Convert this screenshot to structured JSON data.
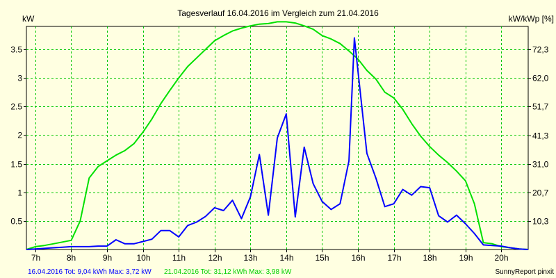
{
  "chart_data": {
    "type": "line",
    "title": "Tagesverlauf 16.04.2016 im Vergleich zum 21.04.2016",
    "ylabel_left": "kW",
    "ylabel_right": "kW/kWp [%]",
    "xlim": [
      6.75,
      20.75
    ],
    "ylim_left": [
      0,
      3.9
    ],
    "ylim_right": [
      0,
      80.6
    ],
    "x_ticks": [
      {
        "x": 7,
        "label": "7h"
      },
      {
        "x": 8,
        "label": "8h"
      },
      {
        "x": 9,
        "label": "9h"
      },
      {
        "x": 10,
        "label": "10h"
      },
      {
        "x": 11,
        "label": "11h"
      },
      {
        "x": 12,
        "label": "12h"
      },
      {
        "x": 13,
        "label": "13h"
      },
      {
        "x": 14,
        "label": "14h"
      },
      {
        "x": 15,
        "label": "15h"
      },
      {
        "x": 16,
        "label": "16h"
      },
      {
        "x": 17,
        "label": "17h"
      },
      {
        "x": 18,
        "label": "18h"
      },
      {
        "x": 19,
        "label": "19h"
      },
      {
        "x": 20,
        "label": "20h"
      }
    ],
    "y_ticks_left": [
      {
        "y": 0.5,
        "label": "0.5"
      },
      {
        "y": 1,
        "label": "1"
      },
      {
        "y": 1.5,
        "label": "1.5"
      },
      {
        "y": 2,
        "label": "2"
      },
      {
        "y": 2.5,
        "label": "2.5"
      },
      {
        "y": 3,
        "label": "3"
      },
      {
        "y": 3.5,
        "label": "3.5"
      }
    ],
    "y_ticks_right": [
      {
        "y": 10.3,
        "label": "10,3"
      },
      {
        "y": 20.7,
        "label": "20,7"
      },
      {
        "y": 31.0,
        "label": "31,0"
      },
      {
        "y": 41.3,
        "label": "41,3"
      },
      {
        "y": 51.7,
        "label": "51,7"
      },
      {
        "y": 62.0,
        "label": "62,0"
      },
      {
        "y": 72.3,
        "label": "72,3"
      }
    ],
    "grid": true,
    "series": [
      {
        "name": "16.04.2016",
        "color": "#0000ff",
        "points": [
          [
            6.75,
            0.0
          ],
          [
            7.0,
            0.01
          ],
          [
            7.25,
            0.02
          ],
          [
            7.5,
            0.03
          ],
          [
            7.75,
            0.04
          ],
          [
            8.0,
            0.05
          ],
          [
            8.25,
            0.05
          ],
          [
            8.5,
            0.05
          ],
          [
            8.75,
            0.06
          ],
          [
            9.0,
            0.06
          ],
          [
            9.25,
            0.17
          ],
          [
            9.5,
            0.1
          ],
          [
            9.75,
            0.1
          ],
          [
            10.0,
            0.14
          ],
          [
            10.25,
            0.18
          ],
          [
            10.5,
            0.33
          ],
          [
            10.75,
            0.33
          ],
          [
            11.0,
            0.22
          ],
          [
            11.25,
            0.42
          ],
          [
            11.5,
            0.48
          ],
          [
            11.75,
            0.58
          ],
          [
            12.0,
            0.73
          ],
          [
            12.25,
            0.68
          ],
          [
            12.5,
            0.86
          ],
          [
            12.75,
            0.54
          ],
          [
            13.0,
            0.92
          ],
          [
            13.25,
            1.66
          ],
          [
            13.5,
            0.6
          ],
          [
            13.75,
            1.95
          ],
          [
            14.0,
            2.37
          ],
          [
            14.25,
            0.57
          ],
          [
            14.5,
            1.79
          ],
          [
            14.75,
            1.15
          ],
          [
            15.0,
            0.84
          ],
          [
            15.25,
            0.7
          ],
          [
            15.5,
            0.8
          ],
          [
            15.75,
            1.55
          ],
          [
            15.9,
            3.7
          ],
          [
            16.25,
            1.68
          ],
          [
            16.5,
            1.25
          ],
          [
            16.75,
            0.75
          ],
          [
            17.0,
            0.8
          ],
          [
            17.25,
            1.05
          ],
          [
            17.5,
            0.95
          ],
          [
            17.75,
            1.1
          ],
          [
            18.0,
            1.08
          ],
          [
            18.25,
            0.59
          ],
          [
            18.5,
            0.48
          ],
          [
            18.75,
            0.6
          ],
          [
            19.0,
            0.45
          ],
          [
            19.25,
            0.28
          ],
          [
            19.5,
            0.08
          ],
          [
            20.0,
            0.06
          ],
          [
            20.25,
            0.03
          ],
          [
            20.5,
            0.01
          ],
          [
            20.75,
            0.0
          ]
        ]
      },
      {
        "name": "21.04.2016",
        "color": "#00e000",
        "points": [
          [
            6.75,
            0.0
          ],
          [
            7.0,
            0.05
          ],
          [
            7.25,
            0.07
          ],
          [
            7.5,
            0.1
          ],
          [
            7.75,
            0.13
          ],
          [
            8.0,
            0.16
          ],
          [
            8.25,
            0.5
          ],
          [
            8.5,
            1.25
          ],
          [
            8.75,
            1.45
          ],
          [
            9.0,
            1.55
          ],
          [
            9.25,
            1.65
          ],
          [
            9.5,
            1.73
          ],
          [
            9.75,
            1.85
          ],
          [
            10.0,
            2.05
          ],
          [
            10.25,
            2.28
          ],
          [
            10.5,
            2.55
          ],
          [
            10.75,
            2.78
          ],
          [
            11.0,
            3.0
          ],
          [
            11.25,
            3.2
          ],
          [
            11.5,
            3.35
          ],
          [
            11.75,
            3.5
          ],
          [
            12.0,
            3.65
          ],
          [
            12.25,
            3.74
          ],
          [
            12.5,
            3.82
          ],
          [
            12.75,
            3.87
          ],
          [
            13.0,
            3.91
          ],
          [
            13.25,
            3.94
          ],
          [
            13.5,
            3.95
          ],
          [
            13.75,
            3.98
          ],
          [
            14.0,
            3.98
          ],
          [
            14.25,
            3.96
          ],
          [
            14.5,
            3.91
          ],
          [
            14.75,
            3.85
          ],
          [
            15.0,
            3.74
          ],
          [
            15.25,
            3.68
          ],
          [
            15.5,
            3.6
          ],
          [
            15.75,
            3.47
          ],
          [
            16.0,
            3.33
          ],
          [
            16.25,
            3.13
          ],
          [
            16.5,
            2.98
          ],
          [
            16.75,
            2.75
          ],
          [
            17.0,
            2.65
          ],
          [
            17.25,
            2.45
          ],
          [
            17.5,
            2.2
          ],
          [
            17.75,
            1.98
          ],
          [
            18.0,
            1.8
          ],
          [
            18.25,
            1.65
          ],
          [
            18.5,
            1.52
          ],
          [
            18.75,
            1.37
          ],
          [
            19.0,
            1.2
          ],
          [
            19.25,
            0.8
          ],
          [
            19.5,
            0.12
          ],
          [
            19.75,
            0.1
          ],
          [
            20.0,
            0.05
          ],
          [
            20.25,
            0.03
          ],
          [
            20.5,
            0.01
          ],
          [
            20.75,
            0.0
          ]
        ]
      }
    ],
    "footer": [
      {
        "text": "16.04.2016 Tot: 9,04 kWh Max: 3,72 kW",
        "color": "#0000ff"
      },
      {
        "text": "21.04.2016 Tot: 31,12 kWh Max: 3,98 kW",
        "color": "#00d000"
      }
    ],
    "credit": "SunnyReport pinxit"
  }
}
